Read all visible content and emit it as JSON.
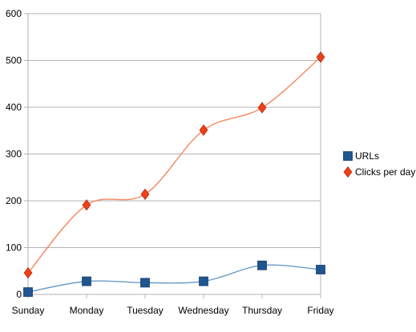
{
  "chart_data": {
    "type": "line",
    "title": "",
    "xlabel": "",
    "ylabel": "",
    "categories": [
      "Sunday",
      "Monday",
      "Tuesday",
      "Wednesday",
      "Thursday",
      "Friday"
    ],
    "ylim": [
      0,
      600
    ],
    "yticks": [
      0,
      100,
      200,
      300,
      400,
      500,
      600
    ],
    "grid": "horizontal",
    "legend_position": "right",
    "smooth": true,
    "series": [
      {
        "name": "URLs",
        "values": [
          5,
          28,
          25,
          28,
          62,
          53
        ],
        "color": "#1f5591",
        "line_color": "#6a9bc8",
        "marker": "square"
      },
      {
        "name": "Clicks per day",
        "values": [
          46,
          191,
          214,
          351,
          399,
          507
        ],
        "color": "#f0401a",
        "line_color": "#f5875e",
        "marker": "diamond"
      }
    ]
  }
}
